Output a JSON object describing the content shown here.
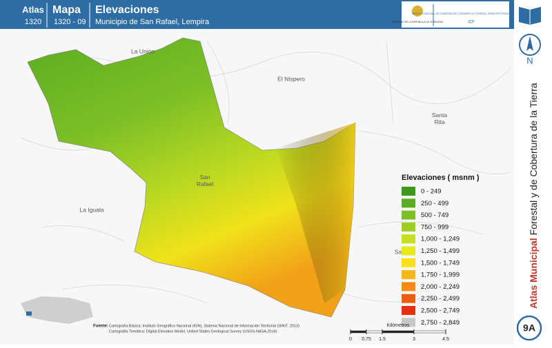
{
  "header": {
    "atlas_label": "Atlas",
    "atlas_number": "1320",
    "map_label": "Mapa",
    "map_number": "1320 - 09",
    "title": "Elevaciones",
    "subtitle": "Municipio de San Rafael, Lempira"
  },
  "logos": {
    "government": "GOBIERNO DE LA REPÚBLICA DE HONDURAS",
    "institute": "INSTITUTO NACIONAL DE CONSERVACIÓN Y DESARROLLO FORESTAL, ÁREAS PROTEGIDAS Y VIDA SILVESTRE",
    "institute_short": "ICF"
  },
  "places": [
    "La Unión",
    "El Níspero",
    "Santa Rita",
    "San Rafael",
    "La Iguala",
    "Sa"
  ],
  "legend": {
    "title": "Elevaciones ( msnm )",
    "entries": [
      {
        "label": "0 - 249",
        "color": "#3e9a1c"
      },
      {
        "label": "250 - 499",
        "color": "#5cad22"
      },
      {
        "label": "500 - 749",
        "color": "#7cbf26"
      },
      {
        "label": "750 - 999",
        "color": "#9dcf22"
      },
      {
        "label": "1,000 - 1,249",
        "color": "#c4e01e"
      },
      {
        "label": "1,250 - 1,499",
        "color": "#e6ea1a"
      },
      {
        "label": "1,500 - 1,749",
        "color": "#f8e01a"
      },
      {
        "label": "1,750 - 1,999",
        "color": "#f6b818"
      },
      {
        "label": "2,000 - 2,249",
        "color": "#f28a14"
      },
      {
        "label": "2,250 - 2,499",
        "color": "#ee5e12"
      },
      {
        "label": "2,500 - 2,749",
        "color": "#e62e10"
      },
      {
        "label": "2,750 - 2,849",
        "color": "#c8c8c8"
      }
    ]
  },
  "sidebar": {
    "north": "N",
    "title_bold": "Atlas Municipal",
    "title_rest": "Forestal y de Cobertura de la Tierra",
    "page": "9A"
  },
  "source": {
    "label": "Fuente:",
    "lines": [
      "Cartografía Básica: Instituto Geográfico Nacional (IGN), Sistema Nacional de Información Territorial (SINIT, 2013)",
      "Cartografía Temática: Digital Elevation Model, United States Geological Survey (USGS-NASA,2014)"
    ]
  },
  "scale": {
    "ticks": [
      0,
      0.75,
      1.5,
      3,
      4.5
    ],
    "unit": "Kilómetros"
  }
}
